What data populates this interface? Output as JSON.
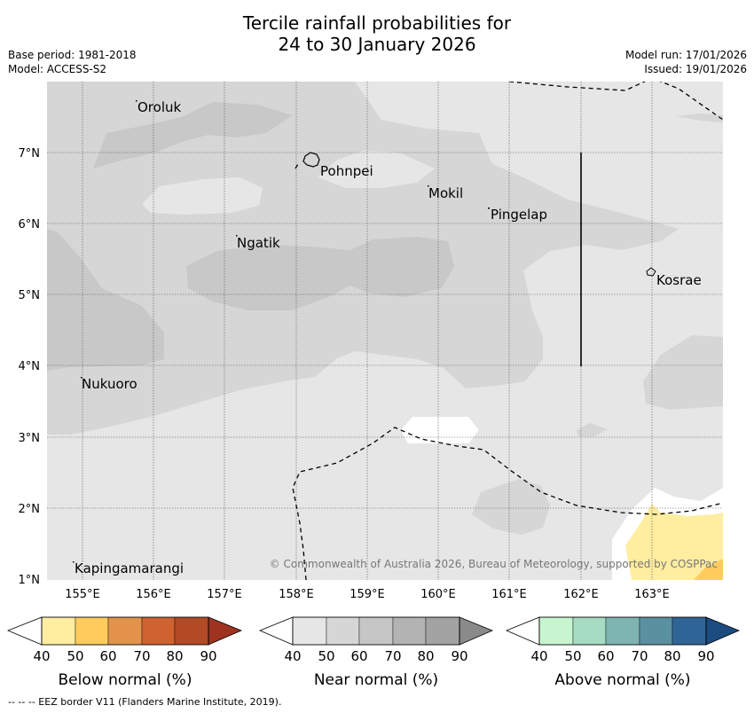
{
  "title": {
    "line1": "Tercile rainfall probabilities for",
    "line2": "24 to 30 January 2026"
  },
  "meta": {
    "base_period": "Base period: 1981-2018",
    "model": "Model: ACCESS-S2",
    "model_run": "Model run: 17/01/2026",
    "issued": "Issued: 19/01/2026"
  },
  "map": {
    "lon_labels": [
      "155°E",
      "156°E",
      "157°E",
      "158°E",
      "159°E",
      "160°E",
      "161°E",
      "162°E",
      "163°E"
    ],
    "lat_labels": [
      "7°N",
      "6°N",
      "5°N",
      "4°N",
      "3°N",
      "2°N",
      "1°N"
    ],
    "places": {
      "oroluk": "Oroluk",
      "pohnpei": "Pohnpei",
      "mokil": "Mokil",
      "pingelap": "Pingelap",
      "ngatik": "Ngatik",
      "kosrae": "Kosrae",
      "nukuoro": "Nukuoro",
      "kapingamarangi": "Kapingamarangi"
    },
    "copyright": "© Commonwealth of Australia 2026, Bureau of Meteorology, supported by COSPPac"
  },
  "legends": {
    "below": {
      "title": "Below normal (%)",
      "ticks": [
        "40",
        "50",
        "60",
        "70",
        "80",
        "90"
      ],
      "colors": [
        "#ffffff",
        "#ffeda0",
        "#fecc5c",
        "#e3944a",
        "#d0622f",
        "#b24a26",
        "#9e3320"
      ]
    },
    "near": {
      "title": "Near normal (%)",
      "ticks": [
        "40",
        "50",
        "60",
        "70",
        "80",
        "90"
      ],
      "colors": [
        "#ffffff",
        "#e6e6e6",
        "#d6d6d6",
        "#c6c6c6",
        "#b3b3b3",
        "#a3a3a3",
        "#8a8a8a"
      ]
    },
    "above": {
      "title": "Above normal (%)",
      "ticks": [
        "40",
        "50",
        "60",
        "70",
        "80",
        "90"
      ],
      "colors": [
        "#ffffff",
        "#c7f5cf",
        "#a5dcc3",
        "#7fb5b0",
        "#5a91a0",
        "#2f6496",
        "#1c4b80"
      ]
    }
  },
  "footnote": "--  --  -- EEZ border V11 (Flanders Marine Institute, 2019)."
}
